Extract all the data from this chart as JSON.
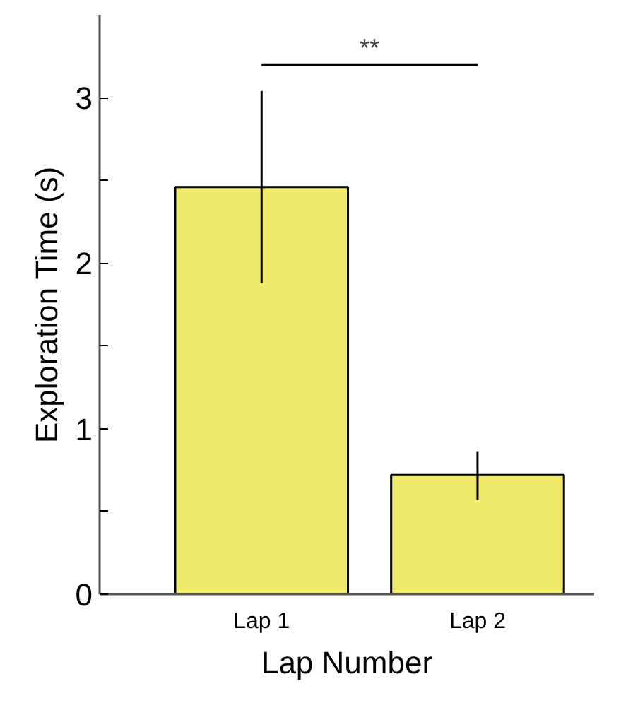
{
  "chart_data": {
    "type": "bar",
    "categories": [
      "Lap 1",
      "Lap 2"
    ],
    "values": [
      2.46,
      0.72
    ],
    "errors": [
      [
        1.88,
        3.04
      ],
      [
        0.57,
        0.86
      ]
    ],
    "color": "#f0ea6c",
    "xlabel": "Lap Number",
    "ylabel": "Exploration Time (s)",
    "ylim": [
      0,
      3.5
    ],
    "yticks": [
      0,
      {
        "value": 0.5,
        "label": null
      },
      1,
      {
        "value": 1.5,
        "label": null
      },
      2,
      {
        "value": 2.5,
        "label": null
      },
      3
    ],
    "annotations": [
      "**"
    ]
  }
}
